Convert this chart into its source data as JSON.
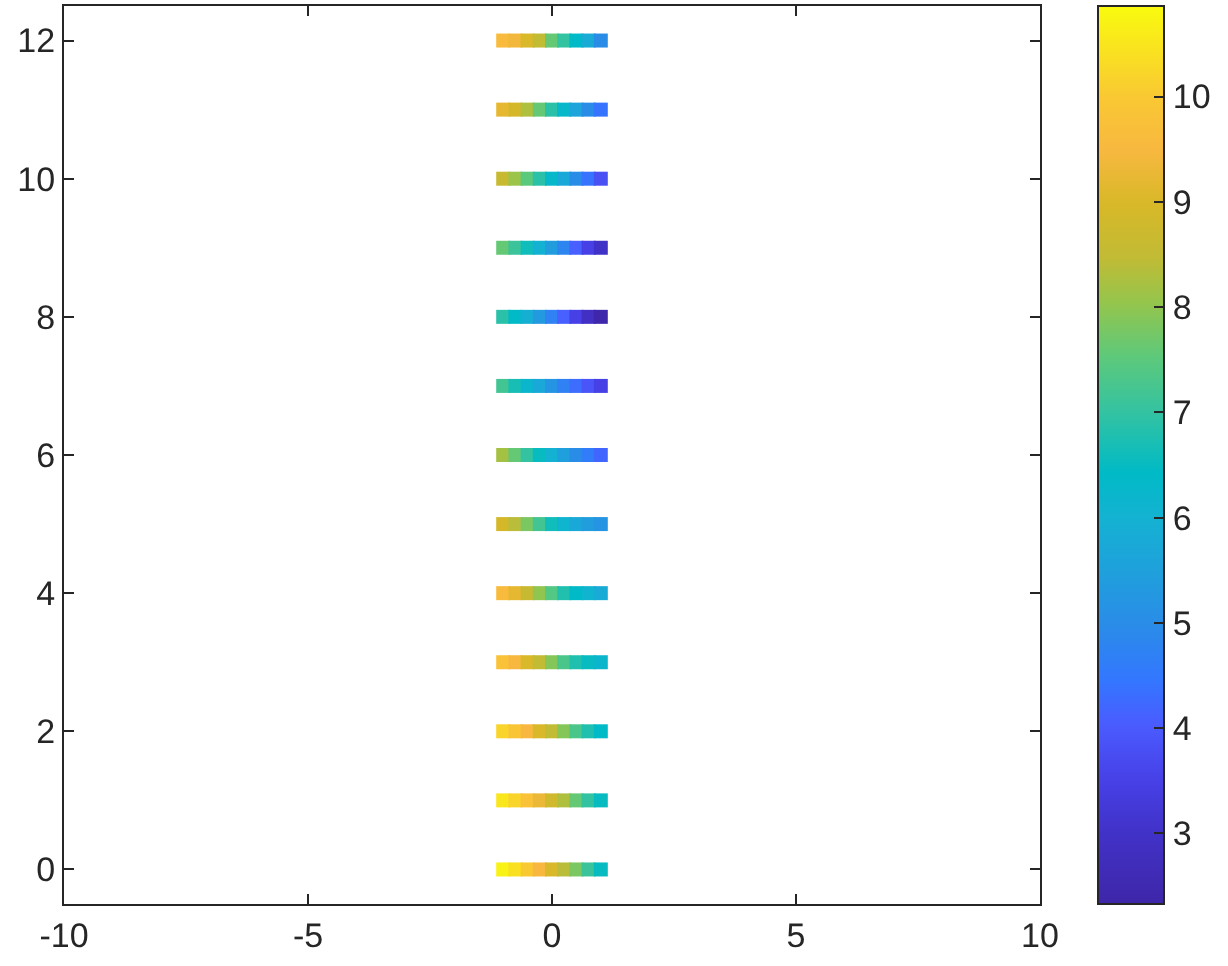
{
  "chart_data": {
    "type": "scatter",
    "marker": "square",
    "x": [
      -1,
      -0.75,
      -0.5,
      -0.25,
      0,
      0.25,
      0.5,
      0.75,
      1,
      -1,
      -0.75,
      -0.5,
      -0.25,
      0,
      0.25,
      0.5,
      0.75,
      1,
      -1,
      -0.75,
      -0.5,
      -0.25,
      0,
      0.25,
      0.5,
      0.75,
      1,
      -1,
      -0.75,
      -0.5,
      -0.25,
      0,
      0.25,
      0.5,
      0.75,
      1,
      -1,
      -0.75,
      -0.5,
      -0.25,
      0,
      0.25,
      0.5,
      0.75,
      1,
      -1,
      -0.75,
      -0.5,
      -0.25,
      0,
      0.25,
      0.5,
      0.75,
      1,
      -1,
      -0.75,
      -0.5,
      -0.25,
      0,
      0.25,
      0.5,
      0.75,
      1,
      -1,
      -0.75,
      -0.5,
      -0.25,
      0,
      0.25,
      0.5,
      0.75,
      1,
      -1,
      -0.75,
      -0.5,
      -0.25,
      0,
      0.25,
      0.5,
      0.75,
      1,
      -1,
      -0.75,
      -0.5,
      -0.25,
      0,
      0.25,
      0.5,
      0.75,
      1,
      -1,
      -0.75,
      -0.5,
      -0.25,
      0,
      0.25,
      0.5,
      0.75,
      1,
      -1,
      -0.75,
      -0.5,
      -0.25,
      0,
      0.25,
      0.5,
      0.75,
      1,
      -1,
      -0.75,
      -0.5,
      -0.25,
      0,
      0.25,
      0.5,
      0.75,
      1
    ],
    "values": [
      0,
      0,
      0,
      0,
      0,
      0,
      0,
      0,
      0,
      1,
      1,
      1,
      1,
      1,
      1,
      1,
      1,
      1,
      2,
      2,
      2,
      2,
      2,
      2,
      2,
      2,
      2,
      3,
      3,
      3,
      3,
      3,
      3,
      3,
      3,
      3,
      4,
      4,
      4,
      4,
      4,
      4,
      4,
      4,
      4,
      5,
      5,
      5,
      5,
      5,
      5,
      5,
      5,
      5,
      6,
      6,
      6,
      6,
      6,
      6,
      6,
      6,
      6,
      7,
      7,
      7,
      7,
      7,
      7,
      7,
      7,
      7,
      8,
      8,
      8,
      8,
      8,
      8,
      8,
      8,
      8,
      9,
      9,
      9,
      9,
      9,
      9,
      9,
      9,
      9,
      10,
      10,
      10,
      10,
      10,
      10,
      10,
      10,
      10,
      11,
      11,
      11,
      11,
      11,
      11,
      11,
      11,
      11,
      12,
      12,
      12,
      12,
      12,
      12,
      12,
      12,
      12
    ],
    "cvalues": [
      10.7,
      10.4,
      10.0,
      9.5,
      9.0,
      8.4,
      7.8,
      7.1,
      6.5,
      10.5,
      10.2,
      9.8,
      9.3,
      8.8,
      8.3,
      7.6,
      7.0,
      6.5,
      10.2,
      9.9,
      9.5,
      9.0,
      8.5,
      7.9,
      7.3,
      6.8,
      6.4,
      9.8,
      9.5,
      9.0,
      8.5,
      7.9,
      7.3,
      6.8,
      6.5,
      6.2,
      9.6,
      9.2,
      8.6,
      8.0,
      7.4,
      6.8,
      6.4,
      6.1,
      5.8,
      8.9,
      8.4,
      7.8,
      7.2,
      6.6,
      6.1,
      5.7,
      5.4,
      5.2,
      8.2,
      7.6,
      7.0,
      6.5,
      6.0,
      5.5,
      5.0,
      4.6,
      4.2,
      7.2,
      6.7,
      6.2,
      5.7,
      5.2,
      4.7,
      4.3,
      3.9,
      3.5,
      6.9,
      6.4,
      5.9,
      5.3,
      4.7,
      4.1,
      3.5,
      2.9,
      2.4,
      7.6,
      7.1,
      6.6,
      6.0,
      5.4,
      4.8,
      4.1,
      3.5,
      3.0,
      8.6,
      8.1,
      7.5,
      6.9,
      6.3,
      5.7,
      5.0,
      4.4,
      3.8,
      9.2,
      8.9,
      8.3,
      7.6,
      6.9,
      6.3,
      5.6,
      5.0,
      4.4,
      9.6,
      9.4,
      9.0,
      8.5,
      7.6,
      7.0,
      6.4,
      5.8,
      5.0
    ],
    "xlim": [
      -10,
      10
    ],
    "xticks": [
      -10,
      -5,
      0,
      5,
      10
    ],
    "ylim": [
      -0.5,
      12.5
    ],
    "yticks": [
      0,
      2,
      4,
      6,
      8,
      10,
      12
    ],
    "clim": [
      2.33,
      10.86
    ],
    "cticks": [
      3,
      4,
      5,
      6,
      7,
      8,
      9,
      10
    ]
  }
}
